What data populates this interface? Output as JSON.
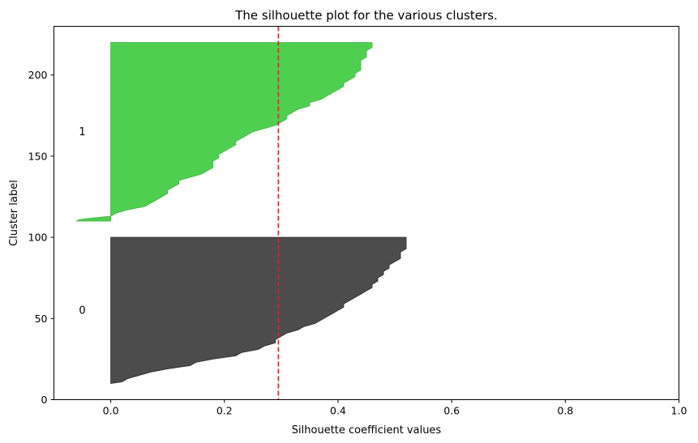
{
  "chart_data": {
    "type": "area",
    "title": "The silhouette plot for the various clusters.",
    "xlabel": "Silhouette coefficient values",
    "ylabel": "Cluster label",
    "xlim": [
      -0.1,
      1.0
    ],
    "ylim": [
      0,
      230
    ],
    "xticks": [
      0.0,
      0.2,
      0.4,
      0.6,
      0.8,
      1.0
    ],
    "xtick_labels": [
      "0.0",
      "0.2",
      "0.4",
      "0.6",
      "0.8",
      "1.0"
    ],
    "yticks": [
      0,
      50,
      100,
      150,
      200
    ],
    "ytick_labels": [
      "0",
      "50",
      "100",
      "150",
      "200"
    ],
    "grid": false,
    "average_silhouette": 0.295,
    "average_line_color": "#d62728",
    "clusters": [
      {
        "label": "0",
        "label_position": [
          -0.05,
          55
        ],
        "color": "#4c4c4c",
        "edge_color": "#2a2a2a",
        "profile": [
          [
            10,
            0.0
          ],
          [
            11,
            0.02
          ],
          [
            13,
            0.03
          ],
          [
            15,
            0.05
          ],
          [
            17,
            0.07
          ],
          [
            19,
            0.1
          ],
          [
            21,
            0.14
          ],
          [
            23,
            0.15
          ],
          [
            25,
            0.18
          ],
          [
            27,
            0.22
          ],
          [
            29,
            0.23
          ],
          [
            31,
            0.26
          ],
          [
            33,
            0.27
          ],
          [
            35,
            0.29
          ],
          [
            37,
            0.29
          ],
          [
            39,
            0.3
          ],
          [
            41,
            0.31
          ],
          [
            43,
            0.33
          ],
          [
            45,
            0.34
          ],
          [
            47,
            0.36
          ],
          [
            49,
            0.37
          ],
          [
            51,
            0.38
          ],
          [
            53,
            0.39
          ],
          [
            55,
            0.4
          ],
          [
            57,
            0.41
          ],
          [
            59,
            0.41
          ],
          [
            61,
            0.42
          ],
          [
            63,
            0.43
          ],
          [
            65,
            0.44
          ],
          [
            67,
            0.45
          ],
          [
            69,
            0.46
          ],
          [
            71,
            0.46
          ],
          [
            73,
            0.47
          ],
          [
            75,
            0.47
          ],
          [
            77,
            0.48
          ],
          [
            79,
            0.48
          ],
          [
            81,
            0.49
          ],
          [
            83,
            0.49
          ],
          [
            85,
            0.5
          ],
          [
            87,
            0.51
          ],
          [
            89,
            0.51
          ],
          [
            91,
            0.51
          ],
          [
            93,
            0.52
          ],
          [
            95,
            0.52
          ],
          [
            97,
            0.52
          ],
          [
            99,
            0.52
          ],
          [
            100,
            0.52
          ]
        ]
      },
      {
        "label": "1",
        "label_position": [
          -0.05,
          165
        ],
        "color": "#4fcf4f",
        "edge_color": "#3fb53f",
        "profile": [
          [
            110,
            -0.06
          ],
          [
            111,
            -0.055
          ],
          [
            112,
            -0.03
          ],
          [
            113,
            0.0
          ],
          [
            115,
            0.01
          ],
          [
            117,
            0.03
          ],
          [
            119,
            0.06
          ],
          [
            121,
            0.07
          ],
          [
            123,
            0.08
          ],
          [
            125,
            0.09
          ],
          [
            127,
            0.1
          ],
          [
            129,
            0.1
          ],
          [
            131,
            0.11
          ],
          [
            133,
            0.12
          ],
          [
            135,
            0.12
          ],
          [
            137,
            0.14
          ],
          [
            139,
            0.16
          ],
          [
            141,
            0.17
          ],
          [
            143,
            0.18
          ],
          [
            145,
            0.18
          ],
          [
            147,
            0.18
          ],
          [
            149,
            0.19
          ],
          [
            151,
            0.19
          ],
          [
            153,
            0.2
          ],
          [
            155,
            0.21
          ],
          [
            157,
            0.22
          ],
          [
            159,
            0.22
          ],
          [
            161,
            0.23
          ],
          [
            163,
            0.24
          ],
          [
            165,
            0.25
          ],
          [
            167,
            0.27
          ],
          [
            169,
            0.29
          ],
          [
            171,
            0.3
          ],
          [
            173,
            0.31
          ],
          [
            175,
            0.31
          ],
          [
            177,
            0.32
          ],
          [
            179,
            0.33
          ],
          [
            181,
            0.35
          ],
          [
            183,
            0.35
          ],
          [
            185,
            0.37
          ],
          [
            187,
            0.38
          ],
          [
            189,
            0.39
          ],
          [
            191,
            0.4
          ],
          [
            193,
            0.41
          ],
          [
            195,
            0.41
          ],
          [
            197,
            0.42
          ],
          [
            199,
            0.43
          ],
          [
            201,
            0.43
          ],
          [
            203,
            0.44
          ],
          [
            205,
            0.44
          ],
          [
            207,
            0.44
          ],
          [
            209,
            0.44
          ],
          [
            211,
            0.45
          ],
          [
            213,
            0.45
          ],
          [
            215,
            0.45
          ],
          [
            217,
            0.46
          ],
          [
            219,
            0.46
          ],
          [
            220,
            0.46
          ]
        ]
      }
    ]
  }
}
